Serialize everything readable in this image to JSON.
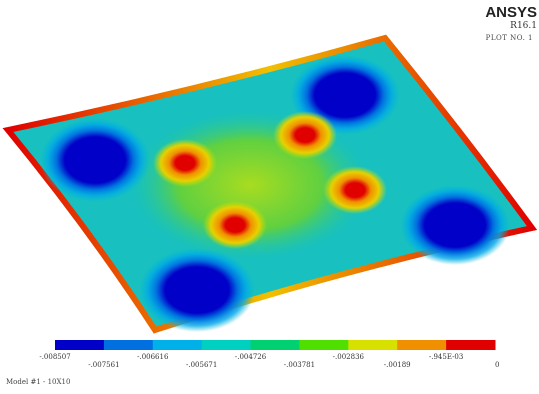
{
  "header": {
    "brand": "ANSYS",
    "release": "R16.1",
    "plot_number": "PLOT NO.   1"
  },
  "legend": {
    "colors": [
      "#0000c8",
      "#0070e0",
      "#00b0e8",
      "#00d0c0",
      "#00d070",
      "#50e000",
      "#d8e000",
      "#f09000",
      "#e00000"
    ],
    "labels": [
      "-.008507",
      "-.007561",
      "-.006616",
      "-.005671",
      "-.004726",
      "-.003781",
      "-.002836",
      "-.00189",
      "-.945E-03",
      "0"
    ]
  },
  "footer": {
    "model": "Model #1 - 10X10"
  }
}
